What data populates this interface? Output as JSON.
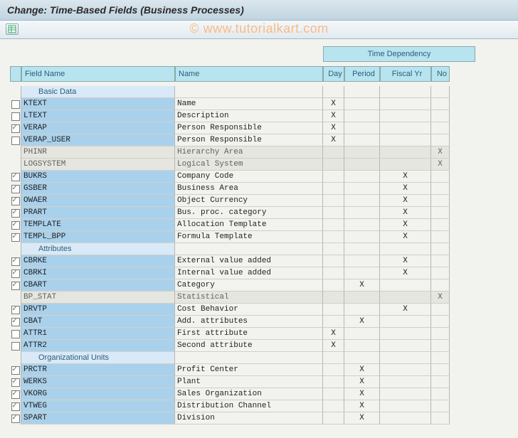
{
  "title": "Change: Time-Based Fields (Business Processes)",
  "watermark": "© www.tutorialkart.com",
  "headers": {
    "time_dependency": "Time Dependency",
    "field_name": "Field Name",
    "name": "Name",
    "day": "Day",
    "period": "Period",
    "fiscal_yr": "Fiscal Yr",
    "no": "No"
  },
  "colors": {
    "header_bg": "#b7e4ef",
    "field_bg": "#aad1ec",
    "section_bg": "#d9e9f7",
    "page_bg": "#f2f2ee",
    "disabled_bg": "#e6e6e0"
  },
  "rows": [
    {
      "type": "section",
      "label": "Basic Data"
    },
    {
      "type": "data",
      "check": "unchecked",
      "field": "KTEXT",
      "name": "Name",
      "day": "X",
      "period": "",
      "fy": "",
      "no": ""
    },
    {
      "type": "data",
      "check": "unchecked",
      "field": "LTEXT",
      "name": "Description",
      "day": "X",
      "period": "",
      "fy": "",
      "no": ""
    },
    {
      "type": "data",
      "check": "checked",
      "field": "VERAP",
      "name": "Person Responsible",
      "day": "X",
      "period": "",
      "fy": "",
      "no": ""
    },
    {
      "type": "data",
      "check": "unchecked",
      "field": "VERAP_USER",
      "name": "Person Responsible",
      "day": "X",
      "period": "",
      "fy": "",
      "no": ""
    },
    {
      "type": "data",
      "check": "hidden",
      "field": "PHINR",
      "name": "Hierarchy Area",
      "day": "",
      "period": "",
      "fy": "",
      "no": "X",
      "disabled": true
    },
    {
      "type": "data",
      "check": "hidden",
      "field": "LOGSYSTEM",
      "name": "Logical System",
      "day": "",
      "period": "",
      "fy": "",
      "no": "X",
      "disabled": true
    },
    {
      "type": "data",
      "check": "checked",
      "field": "BUKRS",
      "name": "Company Code",
      "day": "",
      "period": "",
      "fy": "X",
      "no": ""
    },
    {
      "type": "data",
      "check": "checked",
      "field": "GSBER",
      "name": "Business Area",
      "day": "",
      "period": "",
      "fy": "X",
      "no": ""
    },
    {
      "type": "data",
      "check": "checked",
      "field": "OWAER",
      "name": "Object Currency",
      "day": "",
      "period": "",
      "fy": "X",
      "no": ""
    },
    {
      "type": "data",
      "check": "checked",
      "field": "PRART",
      "name": "Bus. proc. category",
      "day": "",
      "period": "",
      "fy": "X",
      "no": ""
    },
    {
      "type": "data",
      "check": "checked",
      "field": "TEMPLATE",
      "name": "Allocation Template",
      "day": "",
      "period": "",
      "fy": "X",
      "no": ""
    },
    {
      "type": "data",
      "check": "checked",
      "field": "TEMPL_BPP",
      "name": "Formula Template",
      "day": "",
      "period": "",
      "fy": "X",
      "no": ""
    },
    {
      "type": "section",
      "label": "Attributes"
    },
    {
      "type": "data",
      "check": "checked",
      "field": "CBRKE",
      "name": "External value added",
      "day": "",
      "period": "",
      "fy": "X",
      "no": ""
    },
    {
      "type": "data",
      "check": "checked",
      "field": "CBRKI",
      "name": "Internal value added",
      "day": "",
      "period": "",
      "fy": "X",
      "no": ""
    },
    {
      "type": "data",
      "check": "checked",
      "field": "CBART",
      "name": "Category",
      "day": "",
      "period": "X",
      "fy": "",
      "no": ""
    },
    {
      "type": "data",
      "check": "hidden",
      "field": "BP_STAT",
      "name": "Statistical",
      "day": "",
      "period": "",
      "fy": "",
      "no": "X",
      "disabled": true
    },
    {
      "type": "data",
      "check": "checked",
      "field": "DRVTP",
      "name": "Cost Behavior",
      "day": "",
      "period": "",
      "fy": "X",
      "no": ""
    },
    {
      "type": "data",
      "check": "checked",
      "field": "CBAT",
      "name": "Add. attributes",
      "day": "",
      "period": "X",
      "fy": "",
      "no": ""
    },
    {
      "type": "data",
      "check": "unchecked",
      "field": "ATTR1",
      "name": "First attribute",
      "day": "X",
      "period": "",
      "fy": "",
      "no": ""
    },
    {
      "type": "data",
      "check": "unchecked",
      "field": "ATTR2",
      "name": "Second attribute",
      "day": "X",
      "period": "",
      "fy": "",
      "no": ""
    },
    {
      "type": "section",
      "label": "Organizational Units"
    },
    {
      "type": "data",
      "check": "checked",
      "field": "PRCTR",
      "name": "Profit Center",
      "day": "",
      "period": "X",
      "fy": "",
      "no": ""
    },
    {
      "type": "data",
      "check": "checked",
      "field": "WERKS",
      "name": "Plant",
      "day": "",
      "period": "X",
      "fy": "",
      "no": ""
    },
    {
      "type": "data",
      "check": "checked",
      "field": "VKORG",
      "name": "Sales Organization",
      "day": "",
      "period": "X",
      "fy": "",
      "no": ""
    },
    {
      "type": "data",
      "check": "checked",
      "field": "VTWEG",
      "name": "Distribution Channel",
      "day": "",
      "period": "X",
      "fy": "",
      "no": ""
    },
    {
      "type": "data",
      "check": "checked",
      "field": "SPART",
      "name": "Division",
      "day": "",
      "period": "X",
      "fy": "",
      "no": ""
    }
  ]
}
